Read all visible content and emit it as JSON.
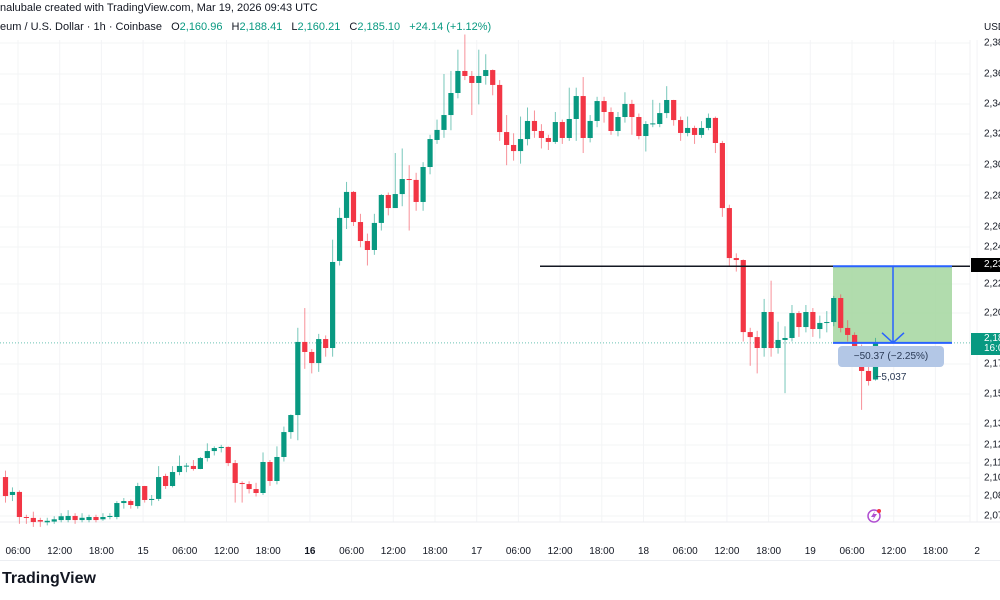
{
  "header": {
    "attribution": "nalubale created with TradingView.com, Mar 19, 2026 09:43 UTC",
    "symbol": "eum / U.S. Dollar · 1h · Coinbase",
    "o_label": "O",
    "o_value": "2,160.96",
    "h_label": "H",
    "h_value": "2,188.41",
    "l_label": "L",
    "l_value": "2,160.21",
    "c_label": "C",
    "c_value": "2,185.10",
    "change": "+24.14 (+1.12%)"
  },
  "axis": {
    "currency": "USD",
    "price_labels": [
      "2,38",
      "2,36",
      "2,34",
      "2,32",
      "2,30",
      "2,28",
      "2,26",
      "2,24",
      "2,22",
      "2,20",
      "2,17",
      "2,15",
      "2,13",
      "2,12",
      "2,11",
      "2,10",
      "2,08",
      "2,07"
    ],
    "time_labels": [
      "06:00",
      "12:00",
      "18:00",
      "15",
      "06:00",
      "12:00",
      "18:00",
      "16",
      "06:00",
      "12:00",
      "18:00",
      "17",
      "06:00",
      "12:00",
      "18:00",
      "18",
      "06:00",
      "12:00",
      "18:00",
      "19",
      "06:00",
      "12:00",
      "18:00",
      "2"
    ],
    "bold_time_labels": [
      "16"
    ],
    "line_badge": "2,23",
    "price_badge_value": "2,18",
    "price_badge_time": "16:0"
  },
  "measure": {
    "label": "−50.37 (−2.25%) −5,037",
    "fill_color": "#a9d8a4",
    "line_color": "#2962ff"
  },
  "logo": "TradingView",
  "colors": {
    "up": "#089981",
    "down": "#f23645",
    "grid": "#f3f4f6"
  },
  "chart_data": {
    "type": "candlestick",
    "interval": "1h",
    "xlabels": [
      "06:00",
      "12:00",
      "18:00",
      "15",
      "06:00",
      "12:00",
      "18:00",
      "16",
      "06:00",
      "12:00",
      "18:00",
      "17",
      "06:00",
      "12:00",
      "18:00",
      "18",
      "06:00",
      "12:00",
      "18:00",
      "19",
      "06:00",
      "12:00",
      "18:00",
      "2"
    ],
    "candles_ohlc": [
      [
        2096.8,
        2101,
        2080,
        2084.3
      ],
      [
        2085.0,
        2090,
        2081,
        2087.0
      ],
      [
        2087.0,
        2088,
        2066,
        2070.5
      ],
      [
        2070.5,
        2072,
        2066,
        2069.9
      ],
      [
        2069.9,
        2074,
        2064,
        2067.2
      ],
      [
        2068.5,
        2070,
        2064,
        2067.5
      ],
      [
        2067.0,
        2070,
        2065,
        2068.0
      ],
      [
        2067.5,
        2071,
        2066,
        2069.0
      ],
      [
        2068.5,
        2073,
        2067,
        2071.0
      ],
      [
        2068.5,
        2075,
        2067,
        2071.2
      ],
      [
        2071.2,
        2073,
        2066,
        2068.5
      ],
      [
        2068.5,
        2073,
        2067,
        2070.0
      ],
      [
        2068.5,
        2072,
        2067,
        2070.5
      ],
      [
        2070.5,
        2072,
        2067,
        2068.5
      ],
      [
        2069.0,
        2073,
        2068,
        2070.5
      ],
      [
        2070.5,
        2073,
        2069,
        2071.2
      ],
      [
        2070.5,
        2081,
        2069,
        2079.7
      ],
      [
        2079.7,
        2083,
        2076,
        2081.0
      ],
      [
        2081.0,
        2082,
        2076,
        2078.4
      ],
      [
        2077.7,
        2093,
        2076,
        2090.9
      ],
      [
        2090.9,
        2091,
        2080,
        2081.7
      ],
      [
        2081.7,
        2085,
        2078,
        2082.4
      ],
      [
        2082.4,
        2104,
        2081,
        2096.8
      ],
      [
        2097.5,
        2099,
        2089,
        2090.9
      ],
      [
        2090.9,
        2104,
        2090,
        2100.1
      ],
      [
        2100.1,
        2111,
        2098,
        2104.1
      ],
      [
        2104.1,
        2106,
        2100,
        2104.3
      ],
      [
        2104.1,
        2108,
        2101,
        2102.1
      ],
      [
        2102.1,
        2110,
        2102,
        2109.3
      ],
      [
        2109.3,
        2119,
        2107,
        2113.9
      ],
      [
        2113.9,
        2117,
        2111,
        2115.9
      ],
      [
        2115.9,
        2118,
        2113,
        2116.6
      ],
      [
        2116.6,
        2117,
        2104,
        2106.0
      ],
      [
        2106.0,
        2108,
        2080,
        2092.9
      ],
      [
        2092.9,
        2094,
        2080,
        2092.2
      ],
      [
        2092.2,
        2094,
        2086,
        2088.9
      ],
      [
        2088.9,
        2093,
        2084,
        2086.3
      ],
      [
        2086.3,
        2113,
        2085,
        2106.7
      ],
      [
        2106.7,
        2108,
        2091,
        2094.2
      ],
      [
        2094.2,
        2117,
        2092,
        2110.0
      ],
      [
        2110.0,
        2130,
        2107,
        2126.4
      ],
      [
        2126.4,
        2138,
        2122,
        2137.6
      ],
      [
        2137.6,
        2195,
        2121,
        2185.7
      ],
      [
        2185.7,
        2208,
        2168,
        2179.1
      ],
      [
        2179.1,
        2181,
        2165,
        2171.8
      ],
      [
        2171.8,
        2191,
        2166,
        2187.6
      ],
      [
        2187.6,
        2190,
        2176,
        2181.7
      ],
      [
        2181.7,
        2253,
        2176,
        2238.3
      ],
      [
        2239.0,
        2274,
        2236,
        2267.3
      ],
      [
        2267.3,
        2291,
        2260,
        2284.4
      ],
      [
        2284.4,
        2285,
        2262,
        2264.6
      ],
      [
        2264.6,
        2270,
        2248,
        2252.1
      ],
      [
        2252.1,
        2257,
        2236,
        2246.2
      ],
      [
        2246.2,
        2270,
        2243,
        2264.0
      ],
      [
        2264.0,
        2283,
        2259,
        2282.4
      ],
      [
        2282.4,
        2284,
        2269,
        2273.8
      ],
      [
        2273.8,
        2310,
        2275,
        2283.0
      ],
      [
        2283.0,
        2313,
        2275,
        2292.9
      ],
      [
        2292.9,
        2302,
        2259,
        2292.3
      ],
      [
        2292.3,
        2297,
        2272,
        2277.8
      ],
      [
        2277.8,
        2304,
        2272,
        2300.8
      ],
      [
        2300.8,
        2322,
        2296,
        2319.2
      ],
      [
        2318.6,
        2332,
        2316,
        2325.2
      ],
      [
        2325.2,
        2362,
        2320,
        2335.0
      ],
      [
        2335.0,
        2364,
        2325,
        2349.5
      ],
      [
        2349.5,
        2378,
        2346,
        2364.0
      ],
      [
        2364.0,
        2388,
        2358,
        2360.7
      ],
      [
        2360.7,
        2364,
        2335,
        2356.1
      ],
      [
        2356.1,
        2378,
        2342,
        2360.7
      ],
      [
        2360.7,
        2375,
        2355,
        2364.6
      ],
      [
        2364.6,
        2365,
        2348,
        2354.8
      ],
      [
        2354.8,
        2358,
        2318,
        2323.8
      ],
      [
        2323.8,
        2335,
        2302,
        2315.3
      ],
      [
        2315.3,
        2323,
        2305,
        2311.3
      ],
      [
        2311.3,
        2334,
        2303,
        2319.2
      ],
      [
        2319.2,
        2340,
        2315,
        2331.1
      ],
      [
        2331.1,
        2338,
        2320,
        2324.5
      ],
      [
        2324.5,
        2329,
        2313,
        2319.9
      ],
      [
        2319.9,
        2322,
        2312,
        2317.3
      ],
      [
        2317.3,
        2337,
        2316,
        2330.4
      ],
      [
        2330.4,
        2332,
        2316,
        2319.9
      ],
      [
        2319.9,
        2353,
        2318,
        2332.4
      ],
      [
        2332.4,
        2353,
        2318,
        2347.5
      ],
      [
        2347.5,
        2360,
        2310,
        2319.9
      ],
      [
        2319.9,
        2335,
        2317,
        2331.1
      ],
      [
        2331.1,
        2347,
        2327,
        2344.2
      ],
      [
        2344.2,
        2347,
        2330,
        2337.0
      ],
      [
        2337.0,
        2340,
        2322,
        2324.5
      ],
      [
        2324.5,
        2337,
        2321,
        2333.7
      ],
      [
        2333.7,
        2350,
        2330,
        2342.3
      ],
      [
        2342.3,
        2345,
        2322,
        2333.7
      ],
      [
        2333.7,
        2336,
        2319,
        2321.2
      ],
      [
        2321.2,
        2331,
        2311,
        2329.1
      ],
      [
        2329.1,
        2345,
        2327,
        2329.5
      ],
      [
        2329.1,
        2343,
        2327,
        2336.3
      ],
      [
        2336.3,
        2354,
        2333,
        2344.9
      ],
      [
        2344.9,
        2345,
        2328,
        2331.7
      ],
      [
        2331.7,
        2334,
        2318,
        2323.2
      ],
      [
        2323.2,
        2334,
        2321,
        2326.5
      ],
      [
        2326.5,
        2328,
        2316,
        2321.9
      ],
      [
        2321.9,
        2331,
        2320,
        2326.5
      ],
      [
        2326.5,
        2336,
        2325,
        2333.1
      ],
      [
        2333.1,
        2334,
        2310,
        2316.6
      ],
      [
        2316.6,
        2318,
        2268,
        2273.8
      ],
      [
        2273.8,
        2276,
        2235,
        2240.9
      ],
      [
        2240.9,
        2244,
        2232,
        2239.6
      ],
      [
        2239.6,
        2240,
        2186,
        2192.2
      ],
      [
        2192.2,
        2195,
        2170,
        2188.9
      ],
      [
        2188.9,
        2193,
        2165,
        2181.7
      ],
      [
        2181.7,
        2214,
        2176,
        2205.4
      ],
      [
        2205.4,
        2226,
        2176,
        2181.7
      ],
      [
        2181.7,
        2199,
        2178,
        2187.0
      ],
      [
        2187.0,
        2196,
        2152,
        2188.3
      ],
      [
        2188.3,
        2210,
        2186,
        2204.7
      ],
      [
        2204.7,
        2206,
        2189,
        2195.5
      ],
      [
        2195.5,
        2210,
        2192,
        2205.4
      ],
      [
        2205.4,
        2208,
        2189,
        2194.2
      ],
      [
        2194.2,
        2203,
        2188,
        2198.2
      ],
      [
        2198.2,
        2206,
        2192,
        2198.8
      ],
      [
        2198.8,
        2216,
        2196,
        2214.6
      ],
      [
        2214.6,
        2217,
        2192,
        2194.9
      ],
      [
        2194.9,
        2200,
        2186,
        2190.3
      ],
      [
        2190.3,
        2192,
        2175,
        2181.7
      ],
      [
        2181.7,
        2184,
        2141,
        2166.6
      ],
      [
        2166.6,
        2170,
        2157,
        2160.0
      ],
      [
        2160.96,
        2188.41,
        2160.21,
        2185.1
      ]
    ],
    "horizontal_line": 2235.5,
    "measure_from": 2235.5,
    "measure_to": 2185.1,
    "grid": true,
    "price_axis": "right"
  }
}
